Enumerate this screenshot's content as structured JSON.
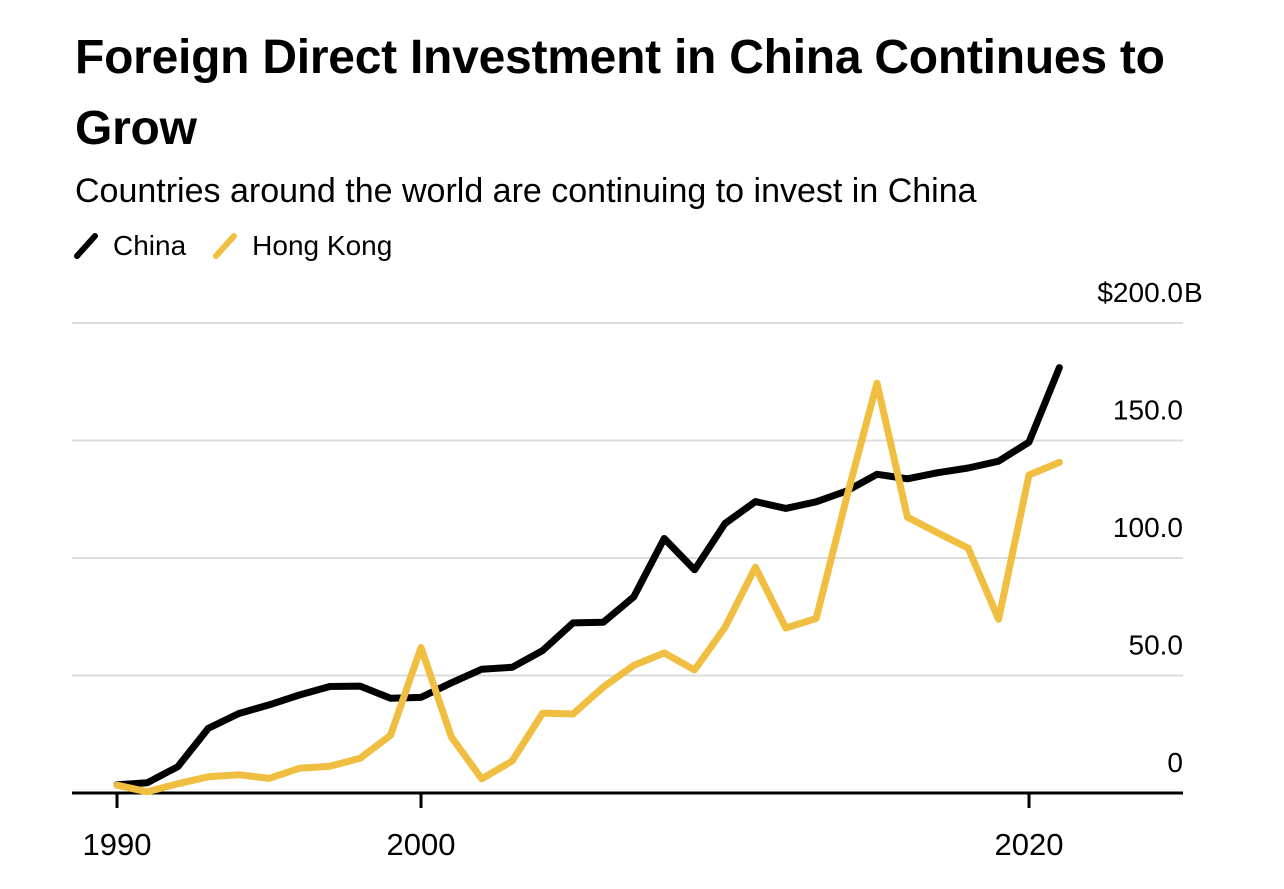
{
  "colors": {
    "background": "#FFFFFF",
    "grid": "#DCDCDC",
    "axis": "#000000",
    "text": "#000000",
    "china_line": "#000000",
    "hong_kong_line": "#F0BF41"
  },
  "chart_data": {
    "type": "line",
    "title": "Foreign Direct Investment in China Continues to Grow",
    "subtitle": "Countries around the world are continuing to invest in China",
    "xlabel": "",
    "ylabel": "",
    "x": [
      1990,
      1991,
      1992,
      1993,
      1994,
      1995,
      1996,
      1997,
      1998,
      1999,
      2000,
      2001,
      2002,
      2003,
      2004,
      2005,
      2006,
      2007,
      2008,
      2009,
      2010,
      2011,
      2012,
      2013,
      2014,
      2015,
      2016,
      2017,
      2018,
      2019,
      2020,
      2021
    ],
    "series": [
      {
        "name": "China",
        "color": "#000000",
        "values": [
          3.5,
          4.4,
          11.2,
          27.5,
          33.8,
          37.5,
          41.7,
          45.3,
          45.5,
          40.3,
          40.7,
          46.9,
          52.7,
          53.5,
          60.6,
          72.4,
          72.7,
          83.5,
          108.3,
          95.0,
          114.7,
          124.0,
          121.1,
          123.9,
          128.5,
          135.6,
          133.7,
          136.3,
          138.3,
          141.2,
          149.3,
          181.0
        ]
      },
      {
        "name": "Hong Kong",
        "color": "#F0BF41",
        "values": [
          3.3,
          0.5,
          3.9,
          6.9,
          7.8,
          6.2,
          10.5,
          11.4,
          14.8,
          24.6,
          61.9,
          23.8,
          6.0,
          13.6,
          34.0,
          33.6,
          45.1,
          54.3,
          59.6,
          52.4,
          70.5,
          96.1,
          70.2,
          74.3,
          125.7,
          174.4,
          117.4,
          110.7,
          104.2,
          73.9,
          135.3,
          140.7
        ]
      }
    ],
    "ylim": [
      0,
      200
    ],
    "xlim": [
      1990,
      2021
    ],
    "y_axis": {
      "position": "right",
      "ticks": [
        0,
        50,
        100,
        150,
        200
      ],
      "labels": [
        "0",
        "50.0",
        "100.0",
        "150.0",
        "$200.0"
      ],
      "top_label_suffix": "B"
    },
    "x_axis": {
      "ticks": [
        1990,
        2000,
        2020
      ],
      "labels": [
        "1990",
        "2000",
        "2020"
      ]
    },
    "grid": "horizontal",
    "legend_position": "top-left",
    "units": "USD billions"
  }
}
